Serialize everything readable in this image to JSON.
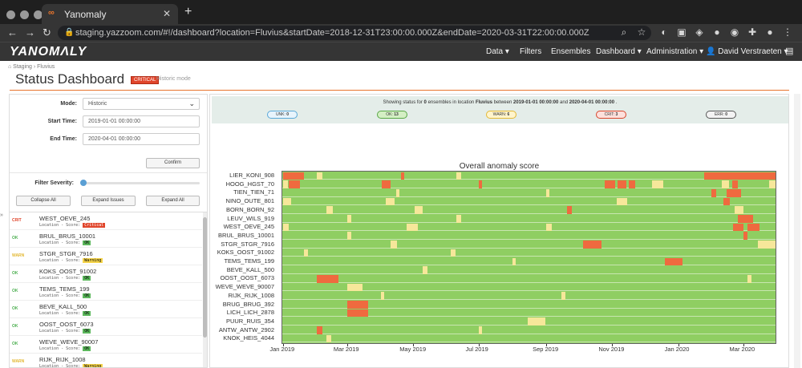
{
  "browser": {
    "tab_title": "Yanomaly",
    "tab_favicon": "∞",
    "tab_close": "✕",
    "new_tab": "+",
    "url": "staging.yazzoom.com/#!/dashboard?location=Fluvius&startDate=2018-12-31T23:00:00.000Z&endDate=2020-03-31T22:00:00.000Z"
  },
  "app": {
    "logo": "YANOMΛLY",
    "nav": {
      "data": "Data ▾",
      "filters": "Filters",
      "ensembles": "Ensembles",
      "dashboard": "Dashboard ▾",
      "administration": "Administration ▾",
      "user": "👤 David Verstraeten ▾"
    }
  },
  "page": {
    "breadcrumb": "⌂ Staging  ›  Fluvius",
    "title": "Status Dashboard",
    "status_badge": "CRITICAL",
    "mode_label": "Historic mode"
  },
  "form": {
    "mode_label": "Mode:",
    "mode_value": "Historic",
    "start_label": "Start Time:",
    "start_value": "2019-01-01 00:00:00",
    "end_label": "End Time:",
    "end_value": "2020-04-01 00:00:00",
    "confirm": "Confirm",
    "filter_label": "Filter Severity:",
    "collapse_all": "Collapse All",
    "expand_issues": "Expand Issues",
    "expand_all": "Expand All"
  },
  "ensembles": [
    {
      "severity": "CRIT",
      "name": "WEST_OEVE_245",
      "loc": "Location - Score:",
      "score": "Critical",
      "color": "#e0452b",
      "text_color": "#ffffff"
    },
    {
      "severity": "OK",
      "name": "BRUL_BRUS_10001",
      "loc": "Location - Score:",
      "score": "OK",
      "color": "#5cb85c",
      "text_color": "#000000"
    },
    {
      "severity": "WARN",
      "name": "STGR_STGR_7916",
      "loc": "Location - Score:",
      "score": "Warning",
      "color": "#f5d44a",
      "text_color": "#000000"
    },
    {
      "severity": "OK",
      "name": "KOKS_OOST_91002",
      "loc": "Location - Score:",
      "score": "OK",
      "color": "#5cb85c",
      "text_color": "#000000"
    },
    {
      "severity": "OK",
      "name": "TEMS_TEMS_199",
      "loc": "Location - Score:",
      "score": "OK",
      "color": "#5cb85c",
      "text_color": "#000000"
    },
    {
      "severity": "OK",
      "name": "BEVE_KALL_500",
      "loc": "Location - Score:",
      "score": "OK",
      "color": "#5cb85c",
      "text_color": "#000000"
    },
    {
      "severity": "OK",
      "name": "OOST_OOST_6073",
      "loc": "Location - Score:",
      "score": "OK",
      "color": "#5cb85c",
      "text_color": "#000000"
    },
    {
      "severity": "OK",
      "name": "WEVE_WEVE_90007",
      "loc": "Location - Score:",
      "score": "OK",
      "color": "#5cb85c",
      "text_color": "#000000"
    },
    {
      "severity": "WARN",
      "name": "RIJK_RIJK_1008",
      "loc": "Location - Score:",
      "score": "Warning",
      "color": "#f5d44a",
      "text_color": "#000000"
    }
  ],
  "summary": {
    "prefix": "Showing status for",
    "count": "0",
    "middle": "ensembles in location",
    "location": "Fluvius",
    "between": "between",
    "start": "2019-01-01 00:00:00",
    "and": "and",
    "end": "2020-04-01 00:00:00",
    "suffix": ".",
    "pills": [
      {
        "label": "UNK:",
        "count": "0",
        "bg": "#e8f4fc",
        "border": "#5aa8d8"
      },
      {
        "label": "OK:",
        "count": "13",
        "bg": "#d4efc4",
        "border": "#58a845"
      },
      {
        "label": "WARN:",
        "count": "6",
        "bg": "#fff4cc",
        "border": "#e3b833"
      },
      {
        "label": "CRIT:",
        "count": "3",
        "bg": "#fde0dc",
        "border": "#d8452b"
      },
      {
        "label": "ERR:",
        "count": "0",
        "bg": "#f3f3f3",
        "border": "#555555"
      }
    ]
  },
  "chart_data": {
    "type": "heatmap",
    "title": "Overall anomaly score",
    "x_range": [
      "2018-12-31",
      "2020-03-31"
    ],
    "x_ticks": [
      "Jan 2019",
      "Mar 2019",
      "May 2019",
      "Jul 2019",
      "Sep 2019",
      "Nov 2019",
      "Jan 2020",
      "Mar 2020"
    ],
    "colors": {
      "ok": "#8fce62",
      "warn": "#f6e79a",
      "crit": "#ef6a3f"
    },
    "rows": [
      {
        "name": "LIER_KONI_908",
        "segments": [
          [
            "2019-01-01",
            "2019-01-20",
            "crit"
          ],
          [
            "2019-02-01",
            "2019-02-06",
            "warn"
          ],
          [
            "2019-04-20",
            "2019-04-23",
            "crit"
          ],
          [
            "2019-06-10",
            "2019-06-14",
            "warn"
          ],
          [
            "2020-01-25",
            "2020-03-31",
            "crit"
          ]
        ]
      },
      {
        "name": "HOOG_HGST_70",
        "segments": [
          [
            "2019-01-01",
            "2019-01-05",
            "warn"
          ],
          [
            "2019-01-06",
            "2019-01-16",
            "crit"
          ],
          [
            "2019-04-02",
            "2019-04-10",
            "crit"
          ],
          [
            "2019-07-01",
            "2019-07-04",
            "crit"
          ],
          [
            "2019-10-25",
            "2019-11-04",
            "crit"
          ],
          [
            "2019-11-06",
            "2019-11-14",
            "crit"
          ],
          [
            "2019-11-16",
            "2019-11-22",
            "crit"
          ],
          [
            "2019-12-08",
            "2019-12-18",
            "warn"
          ],
          [
            "2020-02-10",
            "2020-02-17",
            "warn"
          ],
          [
            "2020-02-20",
            "2020-02-25",
            "crit"
          ],
          [
            "2020-03-25",
            "2020-03-31",
            "warn"
          ]
        ]
      },
      {
        "name": "TIEN_TIEN_71",
        "segments": [
          [
            "2019-04-15",
            "2019-04-18",
            "warn"
          ],
          [
            "2019-09-01",
            "2019-09-04",
            "warn"
          ],
          [
            "2020-02-01",
            "2020-02-05",
            "crit"
          ],
          [
            "2020-02-15",
            "2020-02-28",
            "crit"
          ]
        ]
      },
      {
        "name": "NINO_OUTE_801",
        "segments": [
          [
            "2019-01-01",
            "2019-01-08",
            "warn"
          ],
          [
            "2019-04-06",
            "2019-04-14",
            "warn"
          ],
          [
            "2019-11-05",
            "2019-11-15",
            "warn"
          ],
          [
            "2020-02-12",
            "2020-02-18",
            "crit"
          ]
        ]
      },
      {
        "name": "BORN_BORN_92",
        "segments": [
          [
            "2019-02-10",
            "2019-02-16",
            "warn"
          ],
          [
            "2019-05-02",
            "2019-05-10",
            "warn"
          ],
          [
            "2019-09-20",
            "2019-09-25",
            "crit"
          ],
          [
            "2020-02-22",
            "2020-03-01",
            "warn"
          ]
        ]
      },
      {
        "name": "LEUV_WILS_919",
        "segments": [
          [
            "2019-03-01",
            "2019-03-05",
            "warn"
          ],
          [
            "2019-06-10",
            "2019-06-14",
            "warn"
          ],
          [
            "2020-02-25",
            "2020-03-10",
            "crit"
          ]
        ]
      },
      {
        "name": "WEST_OEVE_245",
        "segments": [
          [
            "2019-01-01",
            "2019-01-06",
            "warn"
          ],
          [
            "2019-04-25",
            "2019-05-05",
            "warn"
          ],
          [
            "2019-09-01",
            "2019-09-06",
            "warn"
          ],
          [
            "2020-02-21",
            "2020-03-01",
            "crit"
          ],
          [
            "2020-03-05",
            "2020-03-16",
            "crit"
          ]
        ]
      },
      {
        "name": "BRUL_BRUS_10001",
        "segments": [
          [
            "2019-03-01",
            "2019-03-05",
            "warn"
          ],
          [
            "2020-03-01",
            "2020-03-05",
            "crit"
          ]
        ]
      },
      {
        "name": "STGR_STGR_7916",
        "segments": [
          [
            "2019-04-10",
            "2019-04-16",
            "warn"
          ],
          [
            "2019-10-05",
            "2019-10-22",
            "crit"
          ],
          [
            "2020-03-15",
            "2020-03-31",
            "warn"
          ]
        ]
      },
      {
        "name": "KOKS_OOST_91002",
        "segments": [
          [
            "2019-01-20",
            "2019-01-24",
            "warn"
          ],
          [
            "2019-06-05",
            "2019-06-09",
            "warn"
          ]
        ]
      },
      {
        "name": "TEMS_TEMS_199",
        "segments": [
          [
            "2019-08-01",
            "2019-08-04",
            "warn"
          ],
          [
            "2019-12-20",
            "2020-01-05",
            "crit"
          ]
        ]
      },
      {
        "name": "BEVE_KALL_500",
        "segments": [
          [
            "2019-05-10",
            "2019-05-14",
            "warn"
          ]
        ]
      },
      {
        "name": "OOST_OOST_6073",
        "segments": [
          [
            "2019-02-01",
            "2019-02-21",
            "crit"
          ],
          [
            "2020-03-05",
            "2020-03-09",
            "warn"
          ]
        ]
      },
      {
        "name": "WEVE_WEVE_90007",
        "segments": [
          [
            "2019-03-01",
            "2019-03-15",
            "warn"
          ]
        ]
      },
      {
        "name": "RIJK_RIJK_1008",
        "segments": [
          [
            "2019-04-01",
            "2019-04-04",
            "warn"
          ],
          [
            "2019-09-15",
            "2019-09-19",
            "warn"
          ]
        ]
      },
      {
        "name": "BRUG_BRUG_392",
        "segments": [
          [
            "2019-03-01",
            "2019-03-20",
            "crit"
          ]
        ]
      },
      {
        "name": "LICH_LICH_2878",
        "segments": [
          [
            "2019-03-01",
            "2019-03-20",
            "crit"
          ]
        ]
      },
      {
        "name": "PUUR_RUIS_354",
        "segments": [
          [
            "2019-08-15",
            "2019-08-31",
            "warn"
          ]
        ]
      },
      {
        "name": "ANTW_ANTW_2902",
        "segments": [
          [
            "2019-02-01",
            "2019-02-06",
            "crit"
          ],
          [
            "2019-07-01",
            "2019-07-04",
            "warn"
          ]
        ]
      },
      {
        "name": "KNOK_HEIS_4044",
        "segments": [
          [
            "2019-02-10",
            "2019-02-14",
            "warn"
          ]
        ]
      }
    ]
  }
}
